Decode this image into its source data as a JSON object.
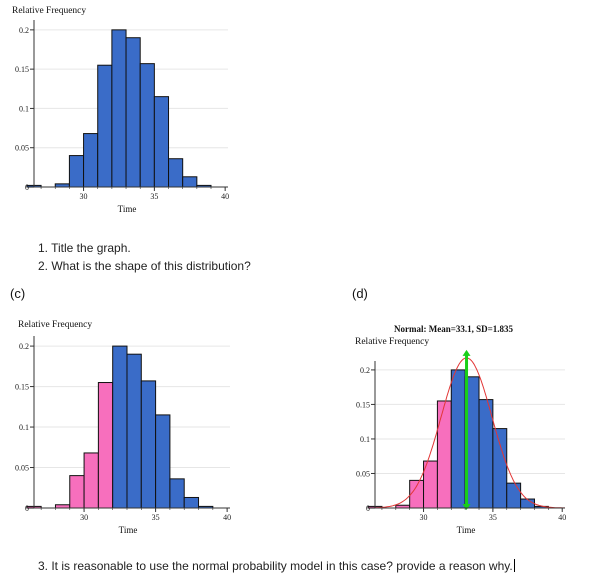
{
  "questions": {
    "q1": "1.   Title the graph.",
    "q2": "2.   What is the shape of this distribution?",
    "q3": "3.    It is reasonable to use the normal probability model in this case?  provide a reason why."
  },
  "panel_labels": {
    "c": "(c)",
    "d": "(d)"
  },
  "colors": {
    "blue": "#3a6cc8",
    "pink": "#f76fbd",
    "green": "#19cf19",
    "red": "#e23636",
    "axis": "#333333",
    "grid": "#e6e6e6"
  },
  "chart_data": [
    {
      "id": "top",
      "type": "bar",
      "title": "",
      "ylabel": "Relative Frequency",
      "xlabel": "Time",
      "xlim": [
        26.5,
        40.2
      ],
      "ylim": [
        0,
        0.21
      ],
      "xticks": [
        "30",
        "35",
        "40"
      ],
      "yticks": [
        "0",
        "0.05",
        "0.1",
        "0.15",
        "0.2"
      ],
      "bin_width": 1,
      "bin_starts": [
        26,
        28,
        29,
        30,
        31,
        32,
        33,
        34,
        35,
        36,
        37,
        38
      ],
      "values": [
        0.001,
        0.004,
        0.04,
        0.068,
        0.155,
        0.2,
        0.19,
        0.157,
        0.115,
        0.036,
        0.013,
        0.001
      ],
      "pink_count": 0,
      "normal": null
    },
    {
      "id": "c",
      "type": "bar",
      "title": "",
      "ylabel": "Relative Frequency",
      "xlabel": "Time",
      "xlim": [
        26.5,
        40.2
      ],
      "ylim": [
        0,
        0.21
      ],
      "xticks": [
        "30",
        "35",
        "40"
      ],
      "yticks": [
        "0",
        "0.05",
        "0.1",
        "0.15",
        "0.2"
      ],
      "bin_width": 1,
      "bin_starts": [
        26,
        28,
        29,
        30,
        31,
        32,
        33,
        34,
        35,
        36,
        37,
        38
      ],
      "values": [
        0.001,
        0.004,
        0.04,
        0.068,
        0.155,
        0.2,
        0.19,
        0.157,
        0.115,
        0.036,
        0.013,
        0.001
      ],
      "pink_count": 5,
      "normal": null
    },
    {
      "id": "d",
      "type": "bar",
      "title": "Normal: Mean=33.1, SD=1.835",
      "ylabel": "Relative Frequency",
      "xlabel": "Time",
      "xlim": [
        26.5,
        40.2
      ],
      "ylim": [
        0,
        0.21
      ],
      "xticks": [
        "30",
        "35",
        "40"
      ],
      "yticks": [
        "0",
        "0.05",
        "0.1",
        "0.15",
        "0.2"
      ],
      "bin_width": 1,
      "bin_starts": [
        26,
        28,
        29,
        30,
        31,
        32,
        33,
        34,
        35,
        36,
        37,
        38
      ],
      "values": [
        0.001,
        0.004,
        0.04,
        0.068,
        0.155,
        0.2,
        0.19,
        0.157,
        0.115,
        0.036,
        0.013,
        0.001
      ],
      "pink_count": 5,
      "normal": {
        "mean": 33.1,
        "sd": 1.835
      }
    }
  ]
}
